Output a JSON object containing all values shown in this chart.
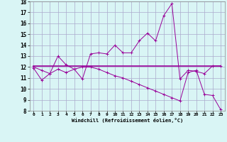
{
  "xlabel": "Windchill (Refroidissement éolien,°C)",
  "x": [
    0,
    1,
    2,
    3,
    4,
    5,
    6,
    7,
    8,
    9,
    10,
    11,
    12,
    13,
    14,
    15,
    16,
    17,
    18,
    19,
    20,
    21,
    22,
    23
  ],
  "line1": [
    11.9,
    10.8,
    11.4,
    13.0,
    12.2,
    11.8,
    10.9,
    13.2,
    13.3,
    13.2,
    14.0,
    13.3,
    13.3,
    14.4,
    15.1,
    14.4,
    16.7,
    17.8,
    10.9,
    11.7,
    11.6,
    11.4,
    12.1,
    12.1
  ],
  "line2": [
    12.1,
    12.1,
    12.1,
    12.1,
    12.1,
    12.1,
    12.1,
    12.1,
    12.1,
    12.1,
    12.1,
    12.1,
    12.1,
    12.1,
    12.1,
    12.1,
    12.1,
    12.1,
    12.1,
    12.1,
    12.1,
    12.1,
    12.1,
    12.1
  ],
  "line3": [
    12.0,
    11.7,
    11.4,
    11.8,
    11.5,
    11.8,
    12.0,
    12.0,
    11.8,
    11.5,
    11.2,
    11.0,
    10.7,
    10.4,
    10.1,
    9.8,
    9.5,
    9.2,
    8.9,
    11.5,
    11.7,
    9.5,
    9.4,
    8.1
  ],
  "line_color": "#990099",
  "bg_color": "#d9f5f5",
  "grid_color": "#aaaacc",
  "ylim": [
    8,
    18
  ],
  "xlim": [
    0,
    23
  ],
  "yticks": [
    8,
    9,
    10,
    11,
    12,
    13,
    14,
    15,
    16,
    17,
    18
  ],
  "xticks": [
    0,
    1,
    2,
    3,
    4,
    5,
    6,
    7,
    8,
    9,
    10,
    11,
    12,
    13,
    14,
    15,
    16,
    17,
    18,
    19,
    20,
    21,
    22,
    23
  ]
}
